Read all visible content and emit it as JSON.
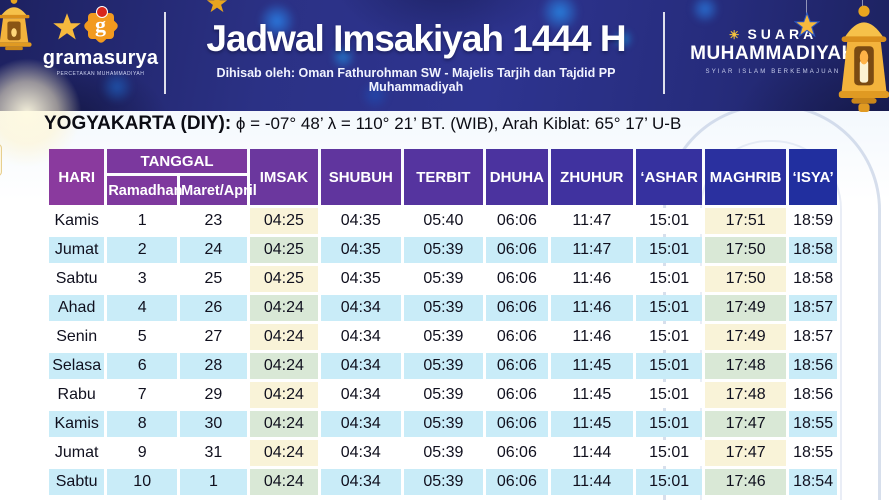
{
  "banner": {
    "title": "Jadwal Imsakiyah 1444 H",
    "subtitle": "Dihisab oleh: Oman Fathurohman SW - Majelis Tarjih dan Tajdid PP Muhammadiyah",
    "left_logo": {
      "name": "gramasurya",
      "letter": "g",
      "caption": "PERCETAKAN MUHAMMADIYAH"
    },
    "right_logo": {
      "sun_icon": "☀",
      "line1": "SUARA",
      "line2": "MUHAMMADIYAH",
      "tagline": "SYIAR ISLAM BERKEMAJUAN"
    }
  },
  "location_bar": {
    "city": "YOGYAKARTA (DIY):",
    "details": " ϕ = -07° 48’  λ = 110° 21’  BT. (WIB), Arah Kiblat: 65° 17’  U-B"
  },
  "table": {
    "header": {
      "hari": "HARI",
      "tanggal": "TANGGAL",
      "sub_ramadhan": "Ramadhan",
      "sub_maret": "Maret/April",
      "time_cols": [
        "IMSAK",
        "SHUBUH",
        "TERBIT",
        "DHUHA",
        "ZHUHUR",
        "‘ASHAR",
        "MAGHRIB",
        "‘ISYA’"
      ]
    },
    "rows": [
      [
        "Kamis",
        "1",
        "23",
        "04:25",
        "04:35",
        "05:40",
        "06:06",
        "11:47",
        "15:01",
        "17:51",
        "18:59"
      ],
      [
        "Jumat",
        "2",
        "24",
        "04:25",
        "04:35",
        "05:39",
        "06:06",
        "11:47",
        "15:01",
        "17:50",
        "18:58"
      ],
      [
        "Sabtu",
        "3",
        "25",
        "04:25",
        "04:35",
        "05:39",
        "06:06",
        "11:46",
        "15:01",
        "17:50",
        "18:58"
      ],
      [
        "Ahad",
        "4",
        "26",
        "04:24",
        "04:34",
        "05:39",
        "06:06",
        "11:46",
        "15:01",
        "17:49",
        "18:57"
      ],
      [
        "Senin",
        "5",
        "27",
        "04:24",
        "04:34",
        "05:39",
        "06:06",
        "11:46",
        "15:01",
        "17:49",
        "18:57"
      ],
      [
        "Selasa",
        "6",
        "28",
        "04:24",
        "04:34",
        "05:39",
        "06:06",
        "11:45",
        "15:01",
        "17:48",
        "18:56"
      ],
      [
        "Rabu",
        "7",
        "29",
        "04:24",
        "04:34",
        "05:39",
        "06:06",
        "11:45",
        "15:01",
        "17:48",
        "18:56"
      ],
      [
        "Kamis",
        "8",
        "30",
        "04:24",
        "04:34",
        "05:39",
        "06:06",
        "11:45",
        "15:01",
        "17:47",
        "18:55"
      ],
      [
        "Jumat",
        "9",
        "31",
        "04:24",
        "04:34",
        "05:39",
        "06:06",
        "11:44",
        "15:01",
        "17:47",
        "18:55"
      ],
      [
        "Sabtu",
        "10",
        "1",
        "04:24",
        "04:34",
        "05:39",
        "06:06",
        "11:44",
        "15:01",
        "17:46",
        "18:54"
      ]
    ]
  },
  "colors": {
    "banner_navy": "#2b3185",
    "header_purple": "#8a3a9e",
    "header_blue": "#1e2f9f",
    "row_blue": "#c9ecf8",
    "highlight_cream": "#f9f3d8",
    "highlight_sage": "#d9e8d6",
    "gold": "#f0b43c"
  }
}
